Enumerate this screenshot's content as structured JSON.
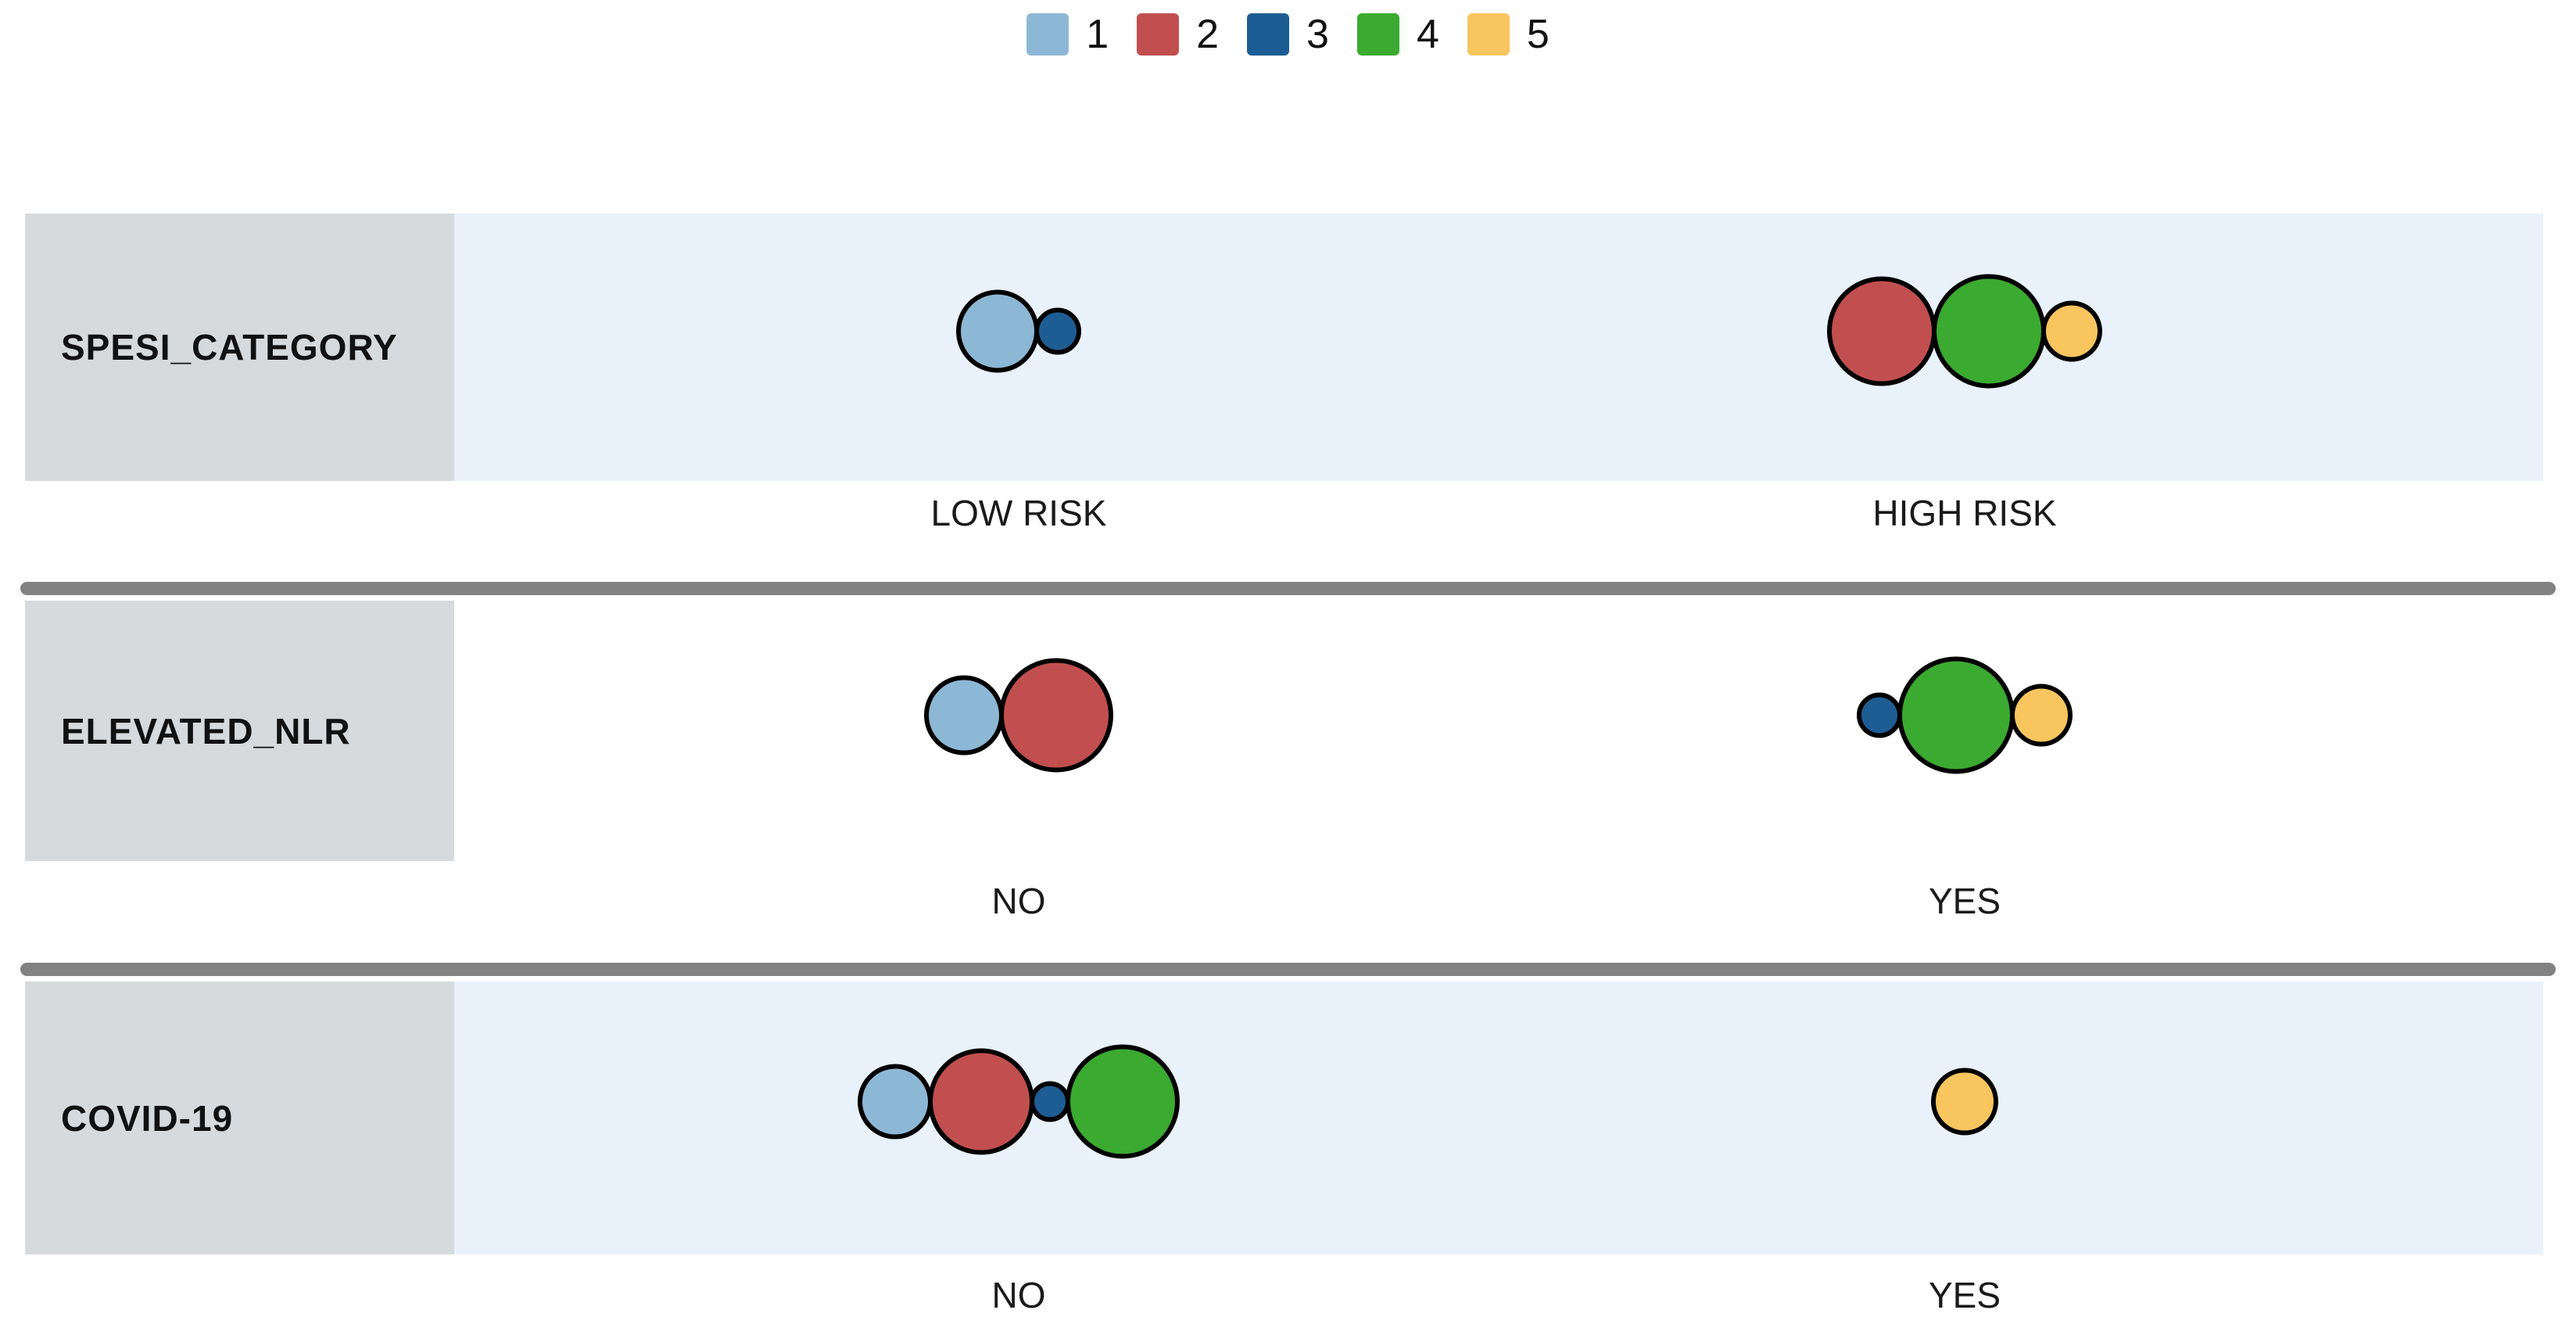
{
  "chart_data": {
    "type": "bubble",
    "title": "",
    "description": "Balloon plot of cluster membership (1-5) across three binary clinical variables",
    "legend": {
      "position": "top-center",
      "entries": [
        {
          "label": "1",
          "color": "#8DB8D5"
        },
        {
          "label": "2",
          "color": "#C24F4F"
        },
        {
          "label": "3",
          "color": "#1E5D93"
        },
        {
          "label": "4",
          "color": "#3BAA30"
        },
        {
          "label": "5",
          "color": "#F9C55F"
        }
      ]
    },
    "rows": [
      {
        "variable": "SPESI_CATEGORY",
        "band_color": "#E9F1FB",
        "categories": [
          {
            "label": "LOW RISK",
            "bubbles": [
              {
                "cluster": "1",
                "radius": 50
              },
              {
                "cluster": "3",
                "radius": 27
              }
            ]
          },
          {
            "label": "HIGH RISK",
            "bubbles": [
              {
                "cluster": "2",
                "radius": 67
              },
              {
                "cluster": "4",
                "radius": 70
              },
              {
                "cluster": "5",
                "radius": 36
              }
            ]
          }
        ]
      },
      {
        "variable": "ELEVATED_NLR",
        "band_color": "#FFFFFF",
        "categories": [
          {
            "label": "NO",
            "bubbles": [
              {
                "cluster": "1",
                "radius": 48
              },
              {
                "cluster": "2",
                "radius": 70
              }
            ]
          },
          {
            "label": "YES",
            "bubbles": [
              {
                "cluster": "3",
                "radius": 26
              },
              {
                "cluster": "4",
                "radius": 72
              },
              {
                "cluster": "5",
                "radius": 37
              }
            ]
          }
        ]
      },
      {
        "variable": "COVID-19",
        "band_color": "#E9F1FB",
        "categories": [
          {
            "label": "NO",
            "bubbles": [
              {
                "cluster": "1",
                "radius": 45
              },
              {
                "cluster": "2",
                "radius": 65
              },
              {
                "cluster": "3",
                "radius": 23
              },
              {
                "cluster": "4",
                "radius": 70
              }
            ]
          },
          {
            "label": "YES",
            "bubbles": [
              {
                "cluster": "5",
                "radius": 40
              }
            ]
          }
        ]
      }
    ],
    "colors": {
      "row_band_blue": "#E9F1FB",
      "row_label_background": "#D6DADD",
      "separator_gray": "#828282",
      "bubble_stroke": "#000000",
      "text": "#111111"
    }
  }
}
